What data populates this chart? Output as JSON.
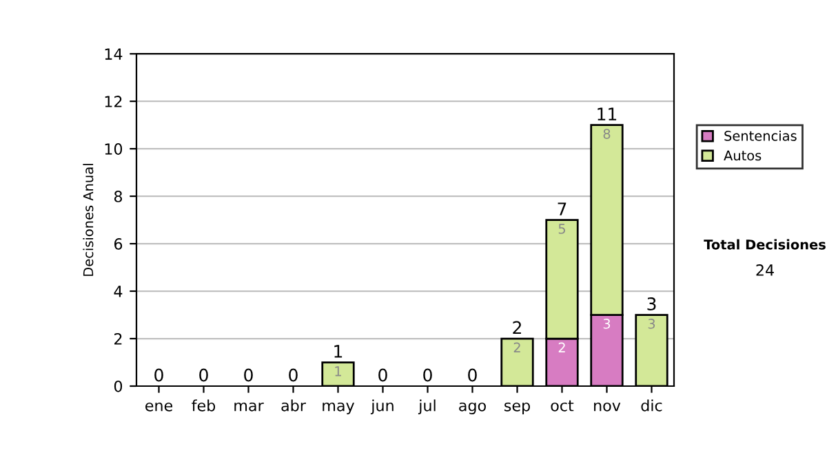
{
  "chart_data": {
    "type": "bar",
    "stacked": true,
    "ylabel": "Decisiones Anual",
    "categories": [
      "ene",
      "feb",
      "mar",
      "abr",
      "may",
      "jun",
      "jul",
      "ago",
      "sep",
      "oct",
      "nov",
      "dic"
    ],
    "series": [
      {
        "name": "Sentencias",
        "color": "#d77cc2",
        "values": [
          0,
          0,
          0,
          0,
          0,
          0,
          0,
          0,
          0,
          2,
          3,
          0
        ],
        "value_labels": [
          null,
          null,
          null,
          null,
          null,
          null,
          null,
          null,
          null,
          "2",
          "3",
          null
        ]
      },
      {
        "name": "Autos",
        "color": "#d3e898",
        "values": [
          0,
          0,
          0,
          0,
          1,
          0,
          0,
          0,
          2,
          5,
          8,
          3
        ],
        "value_labels": [
          null,
          null,
          null,
          null,
          "1",
          null,
          null,
          null,
          "2",
          "5",
          "8",
          "3"
        ]
      }
    ],
    "totals": [
      "0",
      "0",
      "0",
      "0",
      "1",
      "0",
      "0",
      "0",
      "2",
      "7",
      "11",
      "3"
    ],
    "ylim": [
      0,
      14
    ],
    "yticks": [
      0,
      2,
      4,
      6,
      8,
      10,
      12,
      14
    ],
    "grid": "y",
    "legend": "right",
    "annotations": [
      "Total Decisiones",
      "24"
    ]
  }
}
